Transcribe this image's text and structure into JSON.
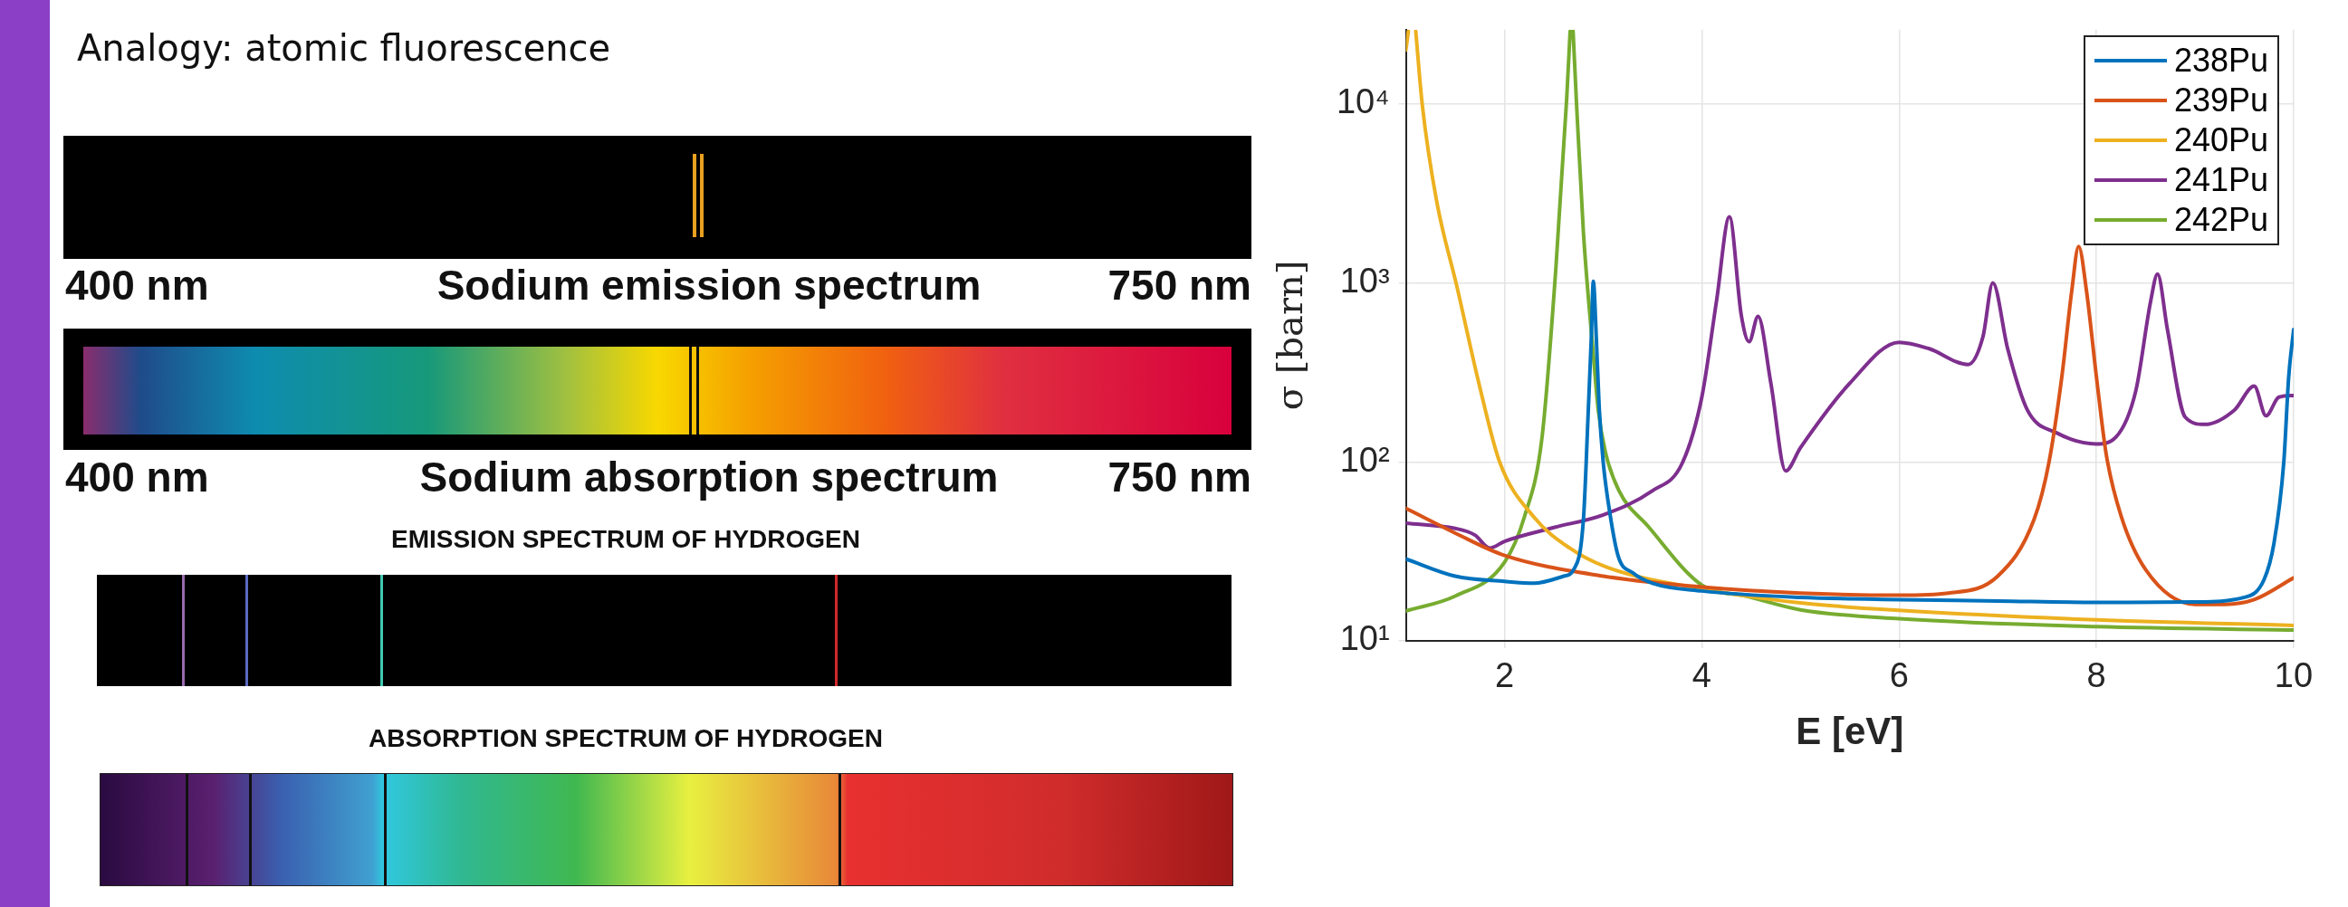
{
  "chart_data": {
    "type": "line",
    "xlabel": "E [eV]",
    "ylabel": "σ [barn]",
    "log": "y",
    "grid": true,
    "legend": "top right",
    "line_style": "solid",
    "xlim": [
      1,
      10
    ],
    "xticks": [
      2,
      4,
      6,
      8,
      10
    ],
    "ylim": [
      10,
      26000
    ],
    "yticks": [
      {
        "value": 10,
        "label": "10¹"
      },
      {
        "value": 100,
        "label": "10²"
      },
      {
        "value": 1000,
        "label": "10³"
      },
      {
        "value": 10000,
        "label": "10⁴"
      }
    ],
    "series": [
      {
        "name": "238Pu",
        "color": "#0072bd",
        "x": [
          1,
          1.5,
          2,
          2.3,
          2.6,
          2.7,
          2.8,
          2.85,
          2.88,
          2.9,
          2.93,
          2.96,
          3.0,
          3.05,
          3.15,
          3.3,
          3.5,
          4,
          5,
          6,
          7,
          8,
          9,
          9.5,
          9.7,
          9.8,
          9.9,
          9.95,
          10
        ],
        "values": [
          28.7,
          23,
          21.5,
          21,
          23,
          25,
          48,
          200,
          500,
          1020,
          500,
          200,
          100,
          60,
          30,
          24,
          21,
          19,
          17.5,
          17,
          16.7,
          16.4,
          16.5,
          17.5,
          22,
          35,
          100,
          300,
          550
        ]
      },
      {
        "name": "239Pu",
        "color": "#d95319",
        "x": [
          1,
          1.5,
          2,
          3,
          4,
          5,
          6,
          6.5,
          7,
          7.37,
          7.52,
          7.65,
          7.75,
          7.82,
          7.9,
          8.0,
          8.1,
          8.25,
          8.5,
          9,
          9.3,
          9.6,
          10
        ],
        "values": [
          55,
          40,
          30,
          23,
          20,
          18.5,
          18,
          18.5,
          23,
          48,
          100,
          300,
          900,
          1600,
          900,
          300,
          110,
          50,
          25,
          16,
          16,
          17,
          22.5
        ]
      },
      {
        "name": "240Pu",
        "color": "#edb120",
        "x": [
          1,
          1.025,
          1.06,
          1.1,
          1.165,
          1.31,
          1.52,
          1.74,
          1.95,
          2.3,
          2.66,
          3.02,
          4,
          5,
          6,
          8,
          10
        ],
        "values": [
          20000,
          25500,
          null,
          25500,
          10000,
          2900,
          940,
          275,
          100,
          49,
          33,
          26,
          19.5,
          16.3,
          14.8,
          13.1,
          12.2
        ]
      },
      {
        "name": "241Pu",
        "color": "#7e2f8e",
        "x": [
          1,
          1.5,
          1.7,
          1.85,
          2,
          2.5,
          3,
          3.5,
          3.8,
          4.0,
          4.15,
          4.28,
          4.4,
          4.48,
          4.57,
          4.7,
          4.85,
          5.0,
          5.5,
          6.0,
          6.3,
          6.7,
          6.85,
          6.95,
          7.1,
          7.3,
          7.6,
          8.0,
          8.2,
          8.4,
          8.55,
          8.62,
          8.72,
          8.9,
          9.1,
          9.4,
          9.6,
          9.72,
          9.85,
          10
        ],
        "values": [
          45.5,
          42.5,
          39,
          33,
          36,
          43,
          50.6,
          69,
          98,
          230,
          800,
          2340,
          660,
          470,
          650,
          275,
          89,
          120,
          275,
          466,
          430,
          350,
          500,
          1000,
          430,
          195,
          145,
          126,
          138,
          250,
          790,
          1120,
          550,
          178,
          162,
          195,
          265,
          181,
          230,
          235
        ]
      },
      {
        "name": "242Pu",
        "color": "#77ac30",
        "x": [
          1,
          1.5,
          2,
          2.2,
          2.38,
          2.52,
          2.63,
          2.665,
          2.68,
          2.695,
          2.73,
          2.8,
          2.9,
          2.95,
          3.02,
          3.16,
          3.45,
          4,
          4.45,
          5,
          6,
          8,
          10
        ],
        "values": [
          14.7,
          17.8,
          27.5,
          49,
          137,
          1200,
          10700,
          25500,
          null,
          25500,
          10000,
          1900,
          400,
          195,
          115,
          69,
          44,
          20.5,
          17.8,
          14.9,
          13.3,
          12,
          11.5
        ]
      }
    ],
    "annotations": [
      "Analogy:  atomic fluorescence",
      "400 nm",
      "Sodium emission spectrum",
      "750 nm",
      "400 nm",
      "Sodium absorption spectrum",
      "750 nm",
      "EMISSION SPECTRUM OF HYDROGEN",
      "ABSORPTION SPECTRUM OF HYDROGEN"
    ]
  }
}
